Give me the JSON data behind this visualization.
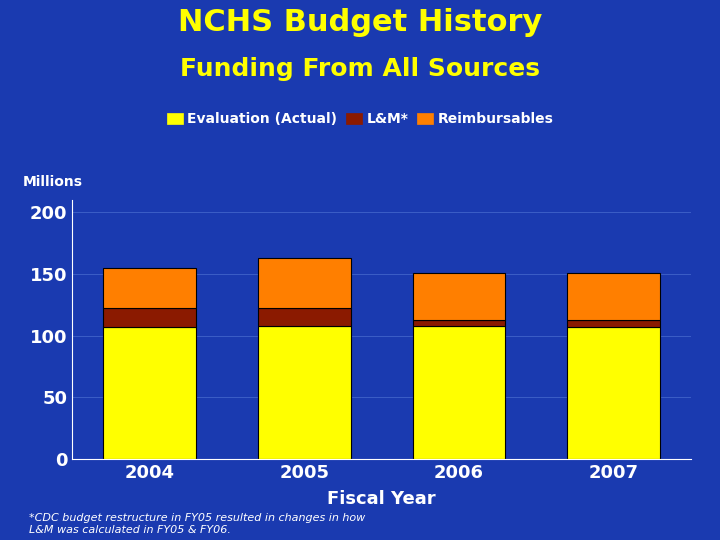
{
  "title_line1": "NCHS Budget History",
  "title_line2": "Funding From All Sources",
  "title_color": "#FFFF00",
  "subtitle_color": "#FFFF00",
  "xlabel": "Fiscal Year",
  "ylabel": "Millions",
  "xlabel_color": "#FFFFFF",
  "ylabel_color": "#FFFFFF",
  "years": [
    "2004",
    "2005",
    "2006",
    "2007"
  ],
  "evaluation": [
    107.0,
    108.0,
    107.5,
    107.0
  ],
  "lm": [
    15.0,
    14.0,
    5.5,
    5.5
  ],
  "reimbursables": [
    33.0,
    41.0,
    38.0,
    38.5
  ],
  "evaluation_color": "#FFFF00",
  "lm_color": "#8B1A00",
  "reimbursables_color": "#FF7F00",
  "background_color": "#1A3AB0",
  "plot_bg_color": "#1A3AB0",
  "grid_color": "#4466CC",
  "text_color": "#FFFFFF",
  "tick_color": "#FFFFFF",
  "bar_edge_color": "#000000",
  "bar_width": 0.6,
  "ylim": [
    0,
    210
  ],
  "yticks": [
    0,
    50,
    100,
    150,
    200
  ],
  "legend_labels": [
    "Evaluation (Actual)",
    "L&M*",
    "Reimbursables"
  ],
  "footnote": "*CDC budget restructure in FY05 resulted in changes in how\nL&M was calculated in FY05 & FY06.",
  "footnote_color": "#FFFFFF",
  "title_fontsize": 22,
  "subtitle_fontsize": 18,
  "legend_fontsize": 10,
  "axis_label_fontsize": 13,
  "tick_fontsize": 13,
  "footnote_fontsize": 8
}
